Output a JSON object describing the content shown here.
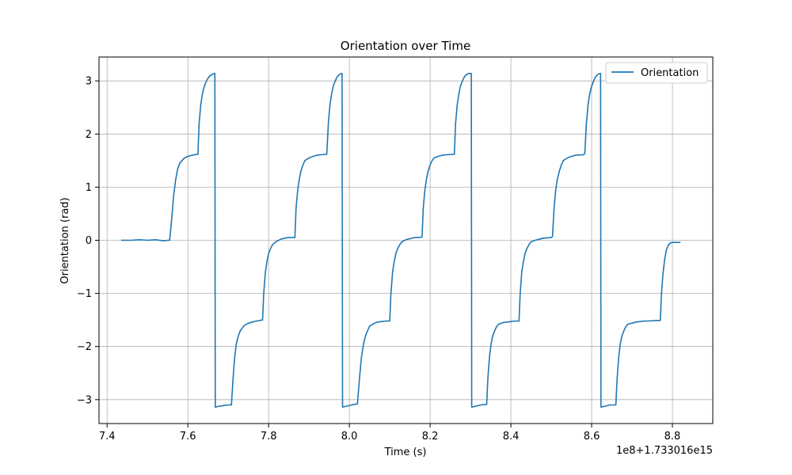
{
  "chart_data": {
    "type": "line",
    "title": "Orientation over Time",
    "xlabel": "Time (s)",
    "ylabel": "Orientation (rad)",
    "x_offset_label": "1e8+1.733016e15",
    "xlim": [
      7.38,
      8.9
    ],
    "ylim": [
      -3.45,
      3.45
    ],
    "x_ticks": [
      7.4,
      7.6,
      7.8,
      8.0,
      8.2,
      8.4,
      8.6,
      8.8
    ],
    "x_tick_labels": [
      "7.4",
      "7.6",
      "7.8",
      "8.0",
      "8.2",
      "8.4",
      "8.6",
      "8.8"
    ],
    "y_ticks": [
      3,
      2,
      1,
      0,
      -1,
      -2,
      -3
    ],
    "y_tick_labels": [
      "3",
      "2",
      "1",
      "0",
      "−1",
      "−2",
      "−3"
    ],
    "grid": true,
    "legend_position": "top-right",
    "series": [
      {
        "name": "Orientation",
        "color": "#1f77b4",
        "x": [
          7.435,
          7.46,
          7.48,
          7.5,
          7.52,
          7.53,
          7.54,
          7.55,
          7.555,
          7.56,
          7.565,
          7.57,
          7.575,
          7.58,
          7.59,
          7.6,
          7.61,
          7.625,
          7.628,
          7.632,
          7.636,
          7.64,
          7.645,
          7.65,
          7.655,
          7.66,
          7.665,
          7.667,
          7.668,
          7.68,
          7.69,
          7.7,
          7.708,
          7.712,
          7.716,
          7.72,
          7.725,
          7.73,
          7.74,
          7.75,
          7.76,
          7.77,
          7.785,
          7.788,
          7.792,
          7.796,
          7.8,
          7.805,
          7.81,
          7.82,
          7.83,
          7.84,
          7.85,
          7.865,
          7.868,
          7.872,
          7.876,
          7.88,
          7.885,
          7.89,
          7.9,
          7.91,
          7.92,
          7.93,
          7.944,
          7.948,
          7.952,
          7.956,
          7.96,
          7.965,
          7.97,
          7.975,
          7.98,
          7.982,
          7.983,
          7.995,
          8.005,
          8.02,
          8.025,
          8.03,
          8.035,
          8.04,
          8.045,
          8.05,
          8.06,
          8.07,
          8.08,
          8.09,
          8.1,
          8.103,
          8.107,
          8.111,
          8.115,
          8.12,
          8.125,
          8.13,
          8.14,
          8.15,
          8.16,
          8.17,
          8.18,
          8.183,
          8.187,
          8.191,
          8.195,
          8.2,
          8.205,
          8.21,
          8.22,
          8.23,
          8.24,
          8.26,
          8.263,
          8.267,
          8.271,
          8.275,
          8.28,
          8.285,
          8.29,
          8.295,
          8.3,
          8.302,
          8.303,
          8.315,
          8.325,
          8.34,
          8.343,
          8.347,
          8.351,
          8.355,
          8.36,
          8.365,
          8.37,
          8.38,
          8.39,
          8.4,
          8.41,
          8.42,
          8.423,
          8.427,
          8.431,
          8.435,
          8.44,
          8.445,
          8.45,
          8.46,
          8.47,
          8.48,
          8.5,
          8.503,
          8.507,
          8.511,
          8.515,
          8.52,
          8.525,
          8.53,
          8.54,
          8.55,
          8.56,
          8.58,
          8.583,
          8.587,
          8.591,
          8.595,
          8.6,
          8.605,
          8.61,
          8.615,
          8.62,
          8.622,
          8.623,
          8.635,
          8.645,
          8.66,
          8.663,
          8.667,
          8.671,
          8.675,
          8.68,
          8.685,
          8.69,
          8.7,
          8.71,
          8.72,
          8.73,
          8.74,
          8.76,
          8.77,
          8.773,
          8.777,
          8.781,
          8.785,
          8.79,
          8.795,
          8.8,
          8.81,
          8.82
        ],
        "y": [
          0.0,
          0.0,
          0.01,
          0.0,
          0.01,
          0.0,
          -0.01,
          0.0,
          0.0,
          0.4,
          0.85,
          1.15,
          1.35,
          1.45,
          1.54,
          1.58,
          1.6,
          1.62,
          2.2,
          2.55,
          2.75,
          2.88,
          2.98,
          3.05,
          3.1,
          3.12,
          3.14,
          3.14,
          -3.14,
          -3.12,
          -3.11,
          -3.1,
          -3.1,
          -2.6,
          -2.2,
          -1.95,
          -1.8,
          -1.7,
          -1.6,
          -1.56,
          -1.54,
          -1.52,
          -1.5,
          -1.0,
          -0.6,
          -0.4,
          -0.25,
          -0.15,
          -0.08,
          -0.02,
          0.02,
          0.04,
          0.05,
          0.05,
          0.6,
          0.95,
          1.15,
          1.3,
          1.42,
          1.5,
          1.55,
          1.58,
          1.6,
          1.61,
          1.62,
          2.2,
          2.55,
          2.75,
          2.9,
          3.0,
          3.08,
          3.12,
          3.14,
          3.14,
          -3.14,
          -3.12,
          -3.1,
          -3.08,
          -2.6,
          -2.2,
          -1.95,
          -1.8,
          -1.7,
          -1.62,
          -1.57,
          -1.54,
          -1.53,
          -1.52,
          -1.52,
          -1.0,
          -0.6,
          -0.4,
          -0.25,
          -0.15,
          -0.08,
          -0.03,
          0.01,
          0.03,
          0.05,
          0.05,
          0.06,
          0.6,
          0.95,
          1.15,
          1.3,
          1.42,
          1.5,
          1.55,
          1.58,
          1.6,
          1.61,
          1.62,
          2.2,
          2.55,
          2.75,
          2.9,
          3.0,
          3.08,
          3.12,
          3.14,
          3.14,
          3.14,
          -3.14,
          -3.12,
          -3.1,
          -3.09,
          -2.6,
          -2.2,
          -1.95,
          -1.8,
          -1.7,
          -1.62,
          -1.58,
          -1.55,
          -1.54,
          -1.53,
          -1.52,
          -1.52,
          -1.0,
          -0.6,
          -0.4,
          -0.25,
          -0.15,
          -0.08,
          -0.03,
          0.0,
          0.02,
          0.04,
          0.05,
          0.07,
          0.6,
          0.95,
          1.15,
          1.3,
          1.42,
          1.5,
          1.55,
          1.58,
          1.6,
          1.61,
          1.64,
          2.2,
          2.55,
          2.75,
          2.9,
          3.0,
          3.08,
          3.12,
          3.14,
          3.14,
          -3.14,
          -3.12,
          -3.1,
          -3.1,
          -2.6,
          -2.2,
          -1.95,
          -1.8,
          -1.7,
          -1.62,
          -1.58,
          -1.56,
          -1.54,
          -1.53,
          -1.52,
          -1.52,
          -1.51,
          -1.51,
          -1.0,
          -0.6,
          -0.35,
          -0.18,
          -0.09,
          -0.05,
          -0.04,
          -0.04,
          -0.04
        ]
      }
    ]
  }
}
